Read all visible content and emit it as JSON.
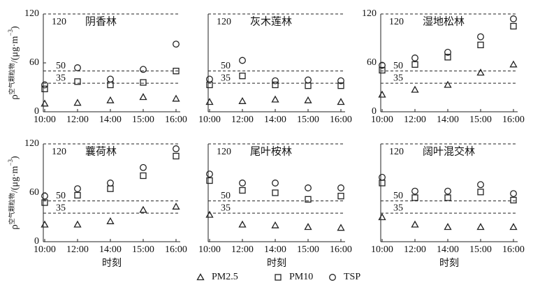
{
  "chart_data": [
    {
      "type": "scatter",
      "title": "阴香林",
      "categories": [
        "10:00",
        "12:00",
        "14:00",
        "15:00",
        "16:00"
      ],
      "ylim": [
        0,
        120
      ],
      "yticks": [
        0,
        60,
        120
      ],
      "ref_lines": [
        120,
        50,
        35
      ],
      "ylabel_parts": [
        "ρ",
        "空气颗粒物",
        "/(μg·m",
        "−3",
        ")"
      ],
      "series": [
        {
          "marker": "triangle",
          "values": [
            10,
            11,
            14,
            18,
            16
          ]
        },
        {
          "marker": "square",
          "values": [
            28,
            37,
            33,
            36,
            50
          ]
        },
        {
          "marker": "circle",
          "values": [
            33,
            54,
            40,
            52,
            83
          ]
        }
      ]
    },
    {
      "type": "scatter",
      "title": "灰木莲林",
      "categories": [
        "10:00",
        "12:00",
        "14:00",
        "15:00",
        "16:00"
      ],
      "ylim": [
        0,
        120
      ],
      "ref_lines": [
        120,
        50,
        35
      ],
      "series": [
        {
          "marker": "triangle",
          "values": [
            12,
            13,
            15,
            14,
            12
          ]
        },
        {
          "marker": "square",
          "values": [
            33,
            44,
            33,
            32,
            32
          ]
        },
        {
          "marker": "circle",
          "values": [
            40,
            63,
            38,
            39,
            38
          ]
        }
      ]
    },
    {
      "type": "scatter",
      "title": "湿地松林",
      "categories": [
        "10:00",
        "12:00",
        "14:00",
        "15:00",
        "16:00"
      ],
      "ylim": [
        0,
        120
      ],
      "yticks": [
        0,
        60,
        120
      ],
      "ref_lines": [
        120,
        50,
        35
      ],
      "series": [
        {
          "marker": "triangle",
          "values": [
            21,
            27,
            33,
            48,
            58
          ]
        },
        {
          "marker": "square",
          "values": [
            51,
            58,
            67,
            82,
            105
          ]
        },
        {
          "marker": "circle",
          "values": [
            57,
            66,
            73,
            92,
            114
          ]
        }
      ]
    },
    {
      "type": "scatter",
      "title": "蘘荷林",
      "categories": [
        "10:00",
        "12:00",
        "14:00",
        "15:00",
        "16:00"
      ],
      "ylim": [
        0,
        120
      ],
      "yticks": [
        0,
        60,
        120
      ],
      "ref_lines": [
        120,
        50,
        35
      ],
      "xlabel": "时刻",
      "ylabel_parts": [
        "ρ",
        "空气颗粒物",
        "/(μg·m",
        "−3",
        ")"
      ],
      "series": [
        {
          "marker": "triangle",
          "values": [
            21,
            21,
            25,
            39,
            43
          ]
        },
        {
          "marker": "square",
          "values": [
            48,
            57,
            65,
            81,
            105
          ]
        },
        {
          "marker": "circle",
          "values": [
            56,
            65,
            72,
            91,
            114
          ]
        }
      ]
    },
    {
      "type": "scatter",
      "title": "尾叶桉林",
      "categories": [
        "10:00",
        "12:00",
        "14:00",
        "15:00",
        "16:00"
      ],
      "ylim": [
        0,
        120
      ],
      "ref_lines": [
        120,
        50,
        35
      ],
      "xlabel": "时刻",
      "series": [
        {
          "marker": "triangle",
          "values": [
            33,
            21,
            20,
            18,
            17
          ]
        },
        {
          "marker": "square",
          "values": [
            75,
            63,
            60,
            52,
            56
          ]
        },
        {
          "marker": "circle",
          "values": [
            83,
            72,
            72,
            66,
            66
          ]
        }
      ]
    },
    {
      "type": "scatter",
      "title": "阔叶混交林",
      "categories": [
        "10:00",
        "12:00",
        "14:00",
        "15:00",
        "16:00"
      ],
      "ylim": [
        0,
        120
      ],
      "ref_lines": [
        120,
        50,
        35
      ],
      "xlabel": "时刻",
      "series": [
        {
          "marker": "triangle",
          "values": [
            30,
            21,
            18,
            18,
            18
          ]
        },
        {
          "marker": "square",
          "values": [
            72,
            54,
            54,
            61,
            51
          ]
        },
        {
          "marker": "circle",
          "values": [
            79,
            62,
            62,
            70,
            59
          ]
        }
      ]
    }
  ],
  "legend": [
    {
      "name": "PM2.5",
      "marker": "triangle"
    },
    {
      "name": "PM10",
      "marker": "square"
    },
    {
      "name": "TSP",
      "marker": "circle"
    }
  ]
}
